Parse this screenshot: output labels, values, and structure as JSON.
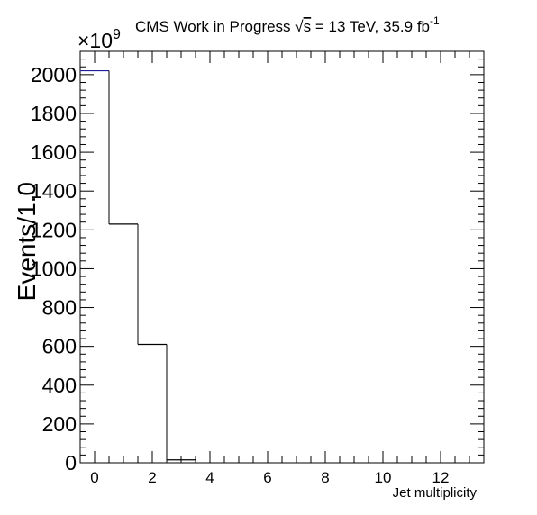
{
  "header": {
    "title_main": "CMS Work in Progress ",
    "sqrt_symbol": "√",
    "sqrt_s": "s",
    "title_rest": " = 13 TeV, 35.9 fb",
    "superscript": "-1"
  },
  "axes": {
    "exponent_base": "×10",
    "exponent_power": "9",
    "ylabel": "Events/1.0",
    "xlabel": "Jet multiplicity"
  },
  "colors": {
    "frame": "#000000",
    "histogram": "#000000",
    "first_bin_top": "#1f1fa0"
  },
  "chart_data": {
    "type": "bar",
    "style": "step-histogram",
    "x_bin_centers": [
      0,
      1,
      2,
      3,
      4,
      5,
      6,
      7,
      8,
      9,
      10,
      11,
      12,
      13
    ],
    "bin_width": 1.0,
    "values": [
      2020,
      1230,
      610,
      15,
      0,
      0,
      0,
      0,
      0,
      0,
      0,
      0,
      0,
      0
    ],
    "y_multiplier": "1e9",
    "xlim": [
      -0.5,
      13.5
    ],
    "ylim": [
      0,
      2120
    ],
    "x_ticks": [
      "0",
      "2",
      "4",
      "6",
      "8",
      "10",
      "12"
    ],
    "x_tick_values": [
      0,
      2,
      4,
      6,
      8,
      10,
      12
    ],
    "y_ticks": [
      "0",
      "200",
      "400",
      "600",
      "800",
      "1000",
      "1200",
      "1400",
      "1600",
      "1800",
      "2000"
    ],
    "y_tick_values": [
      0,
      200,
      400,
      600,
      800,
      1000,
      1200,
      1400,
      1600,
      1800,
      2000
    ],
    "xlabel": "Jet multiplicity",
    "ylabel": "Events/1.0",
    "grid": false,
    "legend": "none"
  }
}
